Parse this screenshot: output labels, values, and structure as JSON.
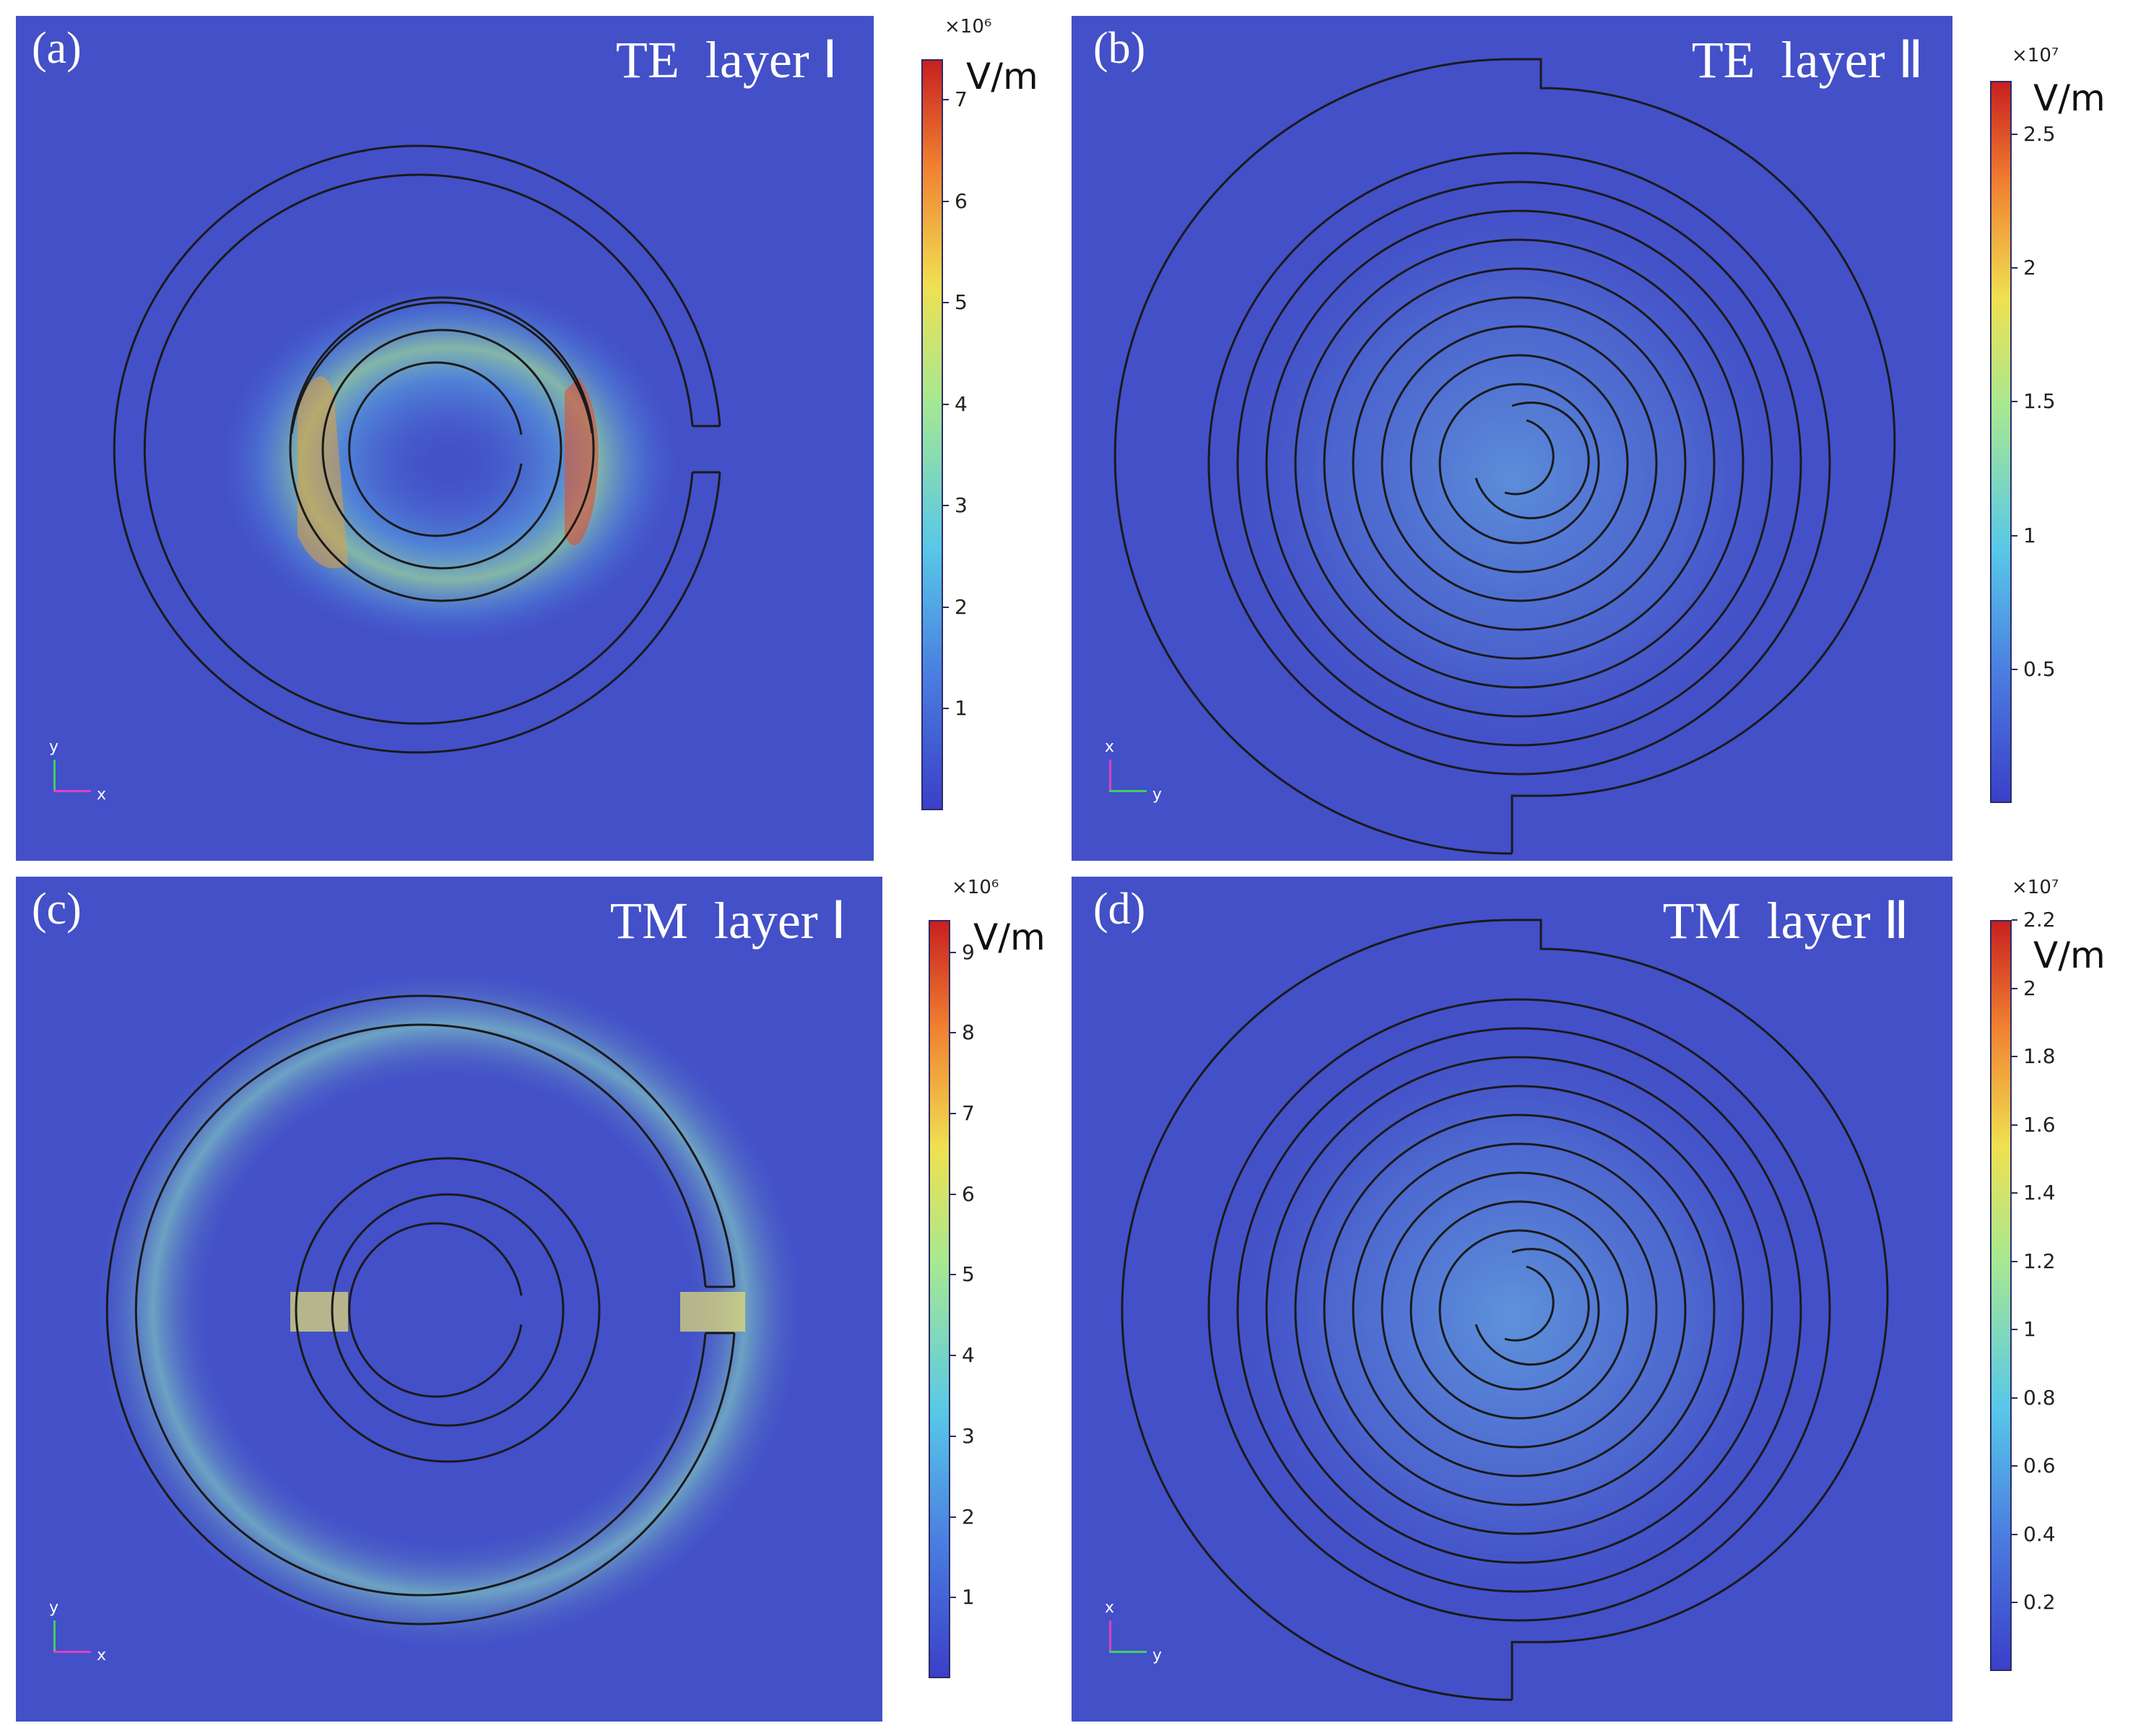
{
  "panels": [
    {
      "id": "a",
      "label": "(a)",
      "title": "TE  layer Ⅰ",
      "structure": "ring",
      "orientation": {
        "vertical": "y",
        "horizontal": "x"
      },
      "colorbar": {
        "exponent": "×10⁶",
        "unit": "V/m",
        "max": 7.4,
        "ticks": [
          "1",
          "2",
          "3",
          "4",
          "5",
          "6",
          "7"
        ],
        "tick_values": [
          1,
          2,
          3,
          4,
          5,
          6,
          7
        ]
      }
    },
    {
      "id": "b",
      "label": "(b)",
      "title": "TE  layer Ⅱ",
      "structure": "spiral",
      "orientation": {
        "vertical": "x",
        "horizontal": "y"
      },
      "colorbar": {
        "exponent": "×10⁷",
        "unit": "V/m",
        "max": 2.7,
        "ticks": [
          "0.5",
          "1",
          "1.5",
          "2",
          "2.5"
        ],
        "tick_values": [
          0.5,
          1,
          1.5,
          2,
          2.5
        ]
      }
    },
    {
      "id": "c",
      "label": "(c)",
      "title": "TM  layer Ⅰ",
      "structure": "ring",
      "orientation": {
        "vertical": "y",
        "horizontal": "x"
      },
      "colorbar": {
        "exponent": "×10⁶",
        "unit": "V/m",
        "max": 9.4,
        "ticks": [
          "1",
          "2",
          "3",
          "4",
          "5",
          "6",
          "7",
          "8",
          "9"
        ],
        "tick_values": [
          1,
          2,
          3,
          4,
          5,
          6,
          7,
          8,
          9
        ]
      }
    },
    {
      "id": "d",
      "label": "(d)",
      "title": "TM  layer Ⅱ",
      "structure": "spiral",
      "orientation": {
        "vertical": "x",
        "horizontal": "y"
      },
      "colorbar": {
        "exponent": "×10⁷",
        "unit": "V/m",
        "max": 2.2,
        "ticks": [
          "0.2",
          "0.4",
          "0.6",
          "0.8",
          "1",
          "1.2",
          "1.4",
          "1.6",
          "1.8",
          "2",
          "2.2"
        ],
        "tick_values": [
          0.2,
          0.4,
          0.6,
          0.8,
          1,
          1.2,
          1.4,
          1.6,
          1.8,
          2,
          2.2
        ]
      }
    }
  ],
  "colors": {
    "background": "#4350c8",
    "outline": "#1a1a1a",
    "text": "#ffffff"
  }
}
